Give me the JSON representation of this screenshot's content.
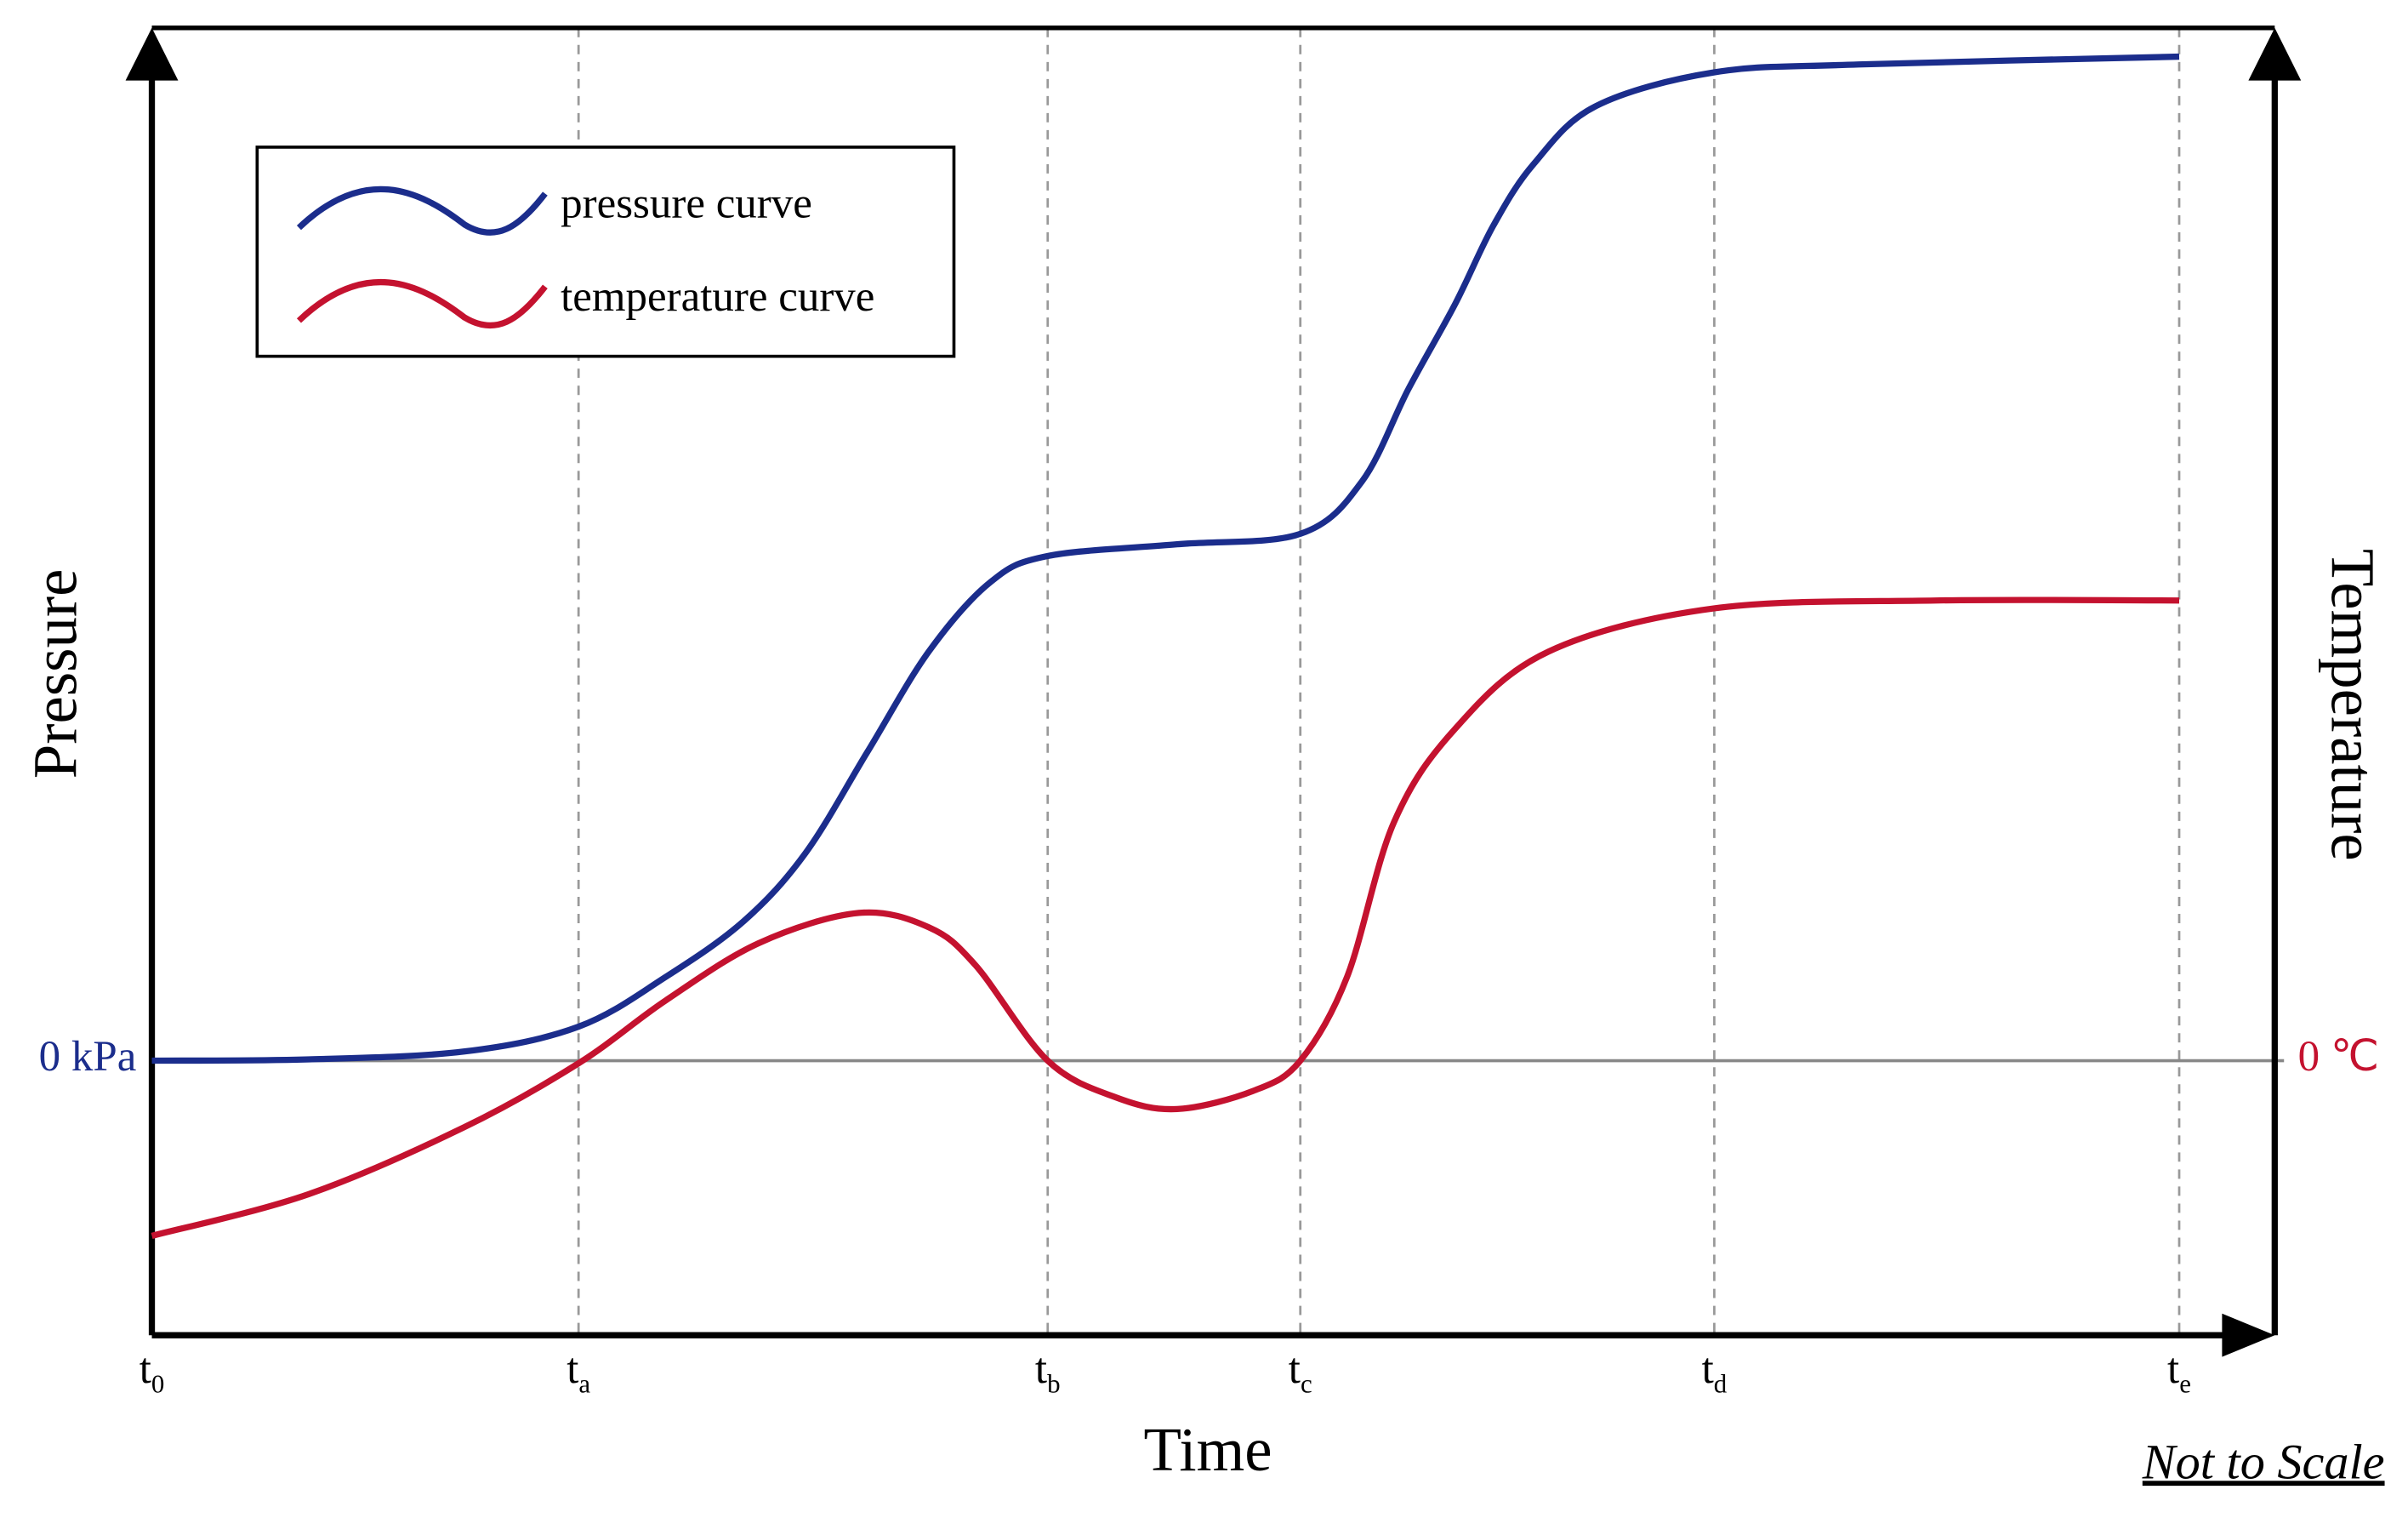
{
  "chart_data": {
    "type": "line",
    "xlabel": "Time",
    "ylabel": "Pressure",
    "y2label": "Temperature",
    "note": "Not to Scale",
    "xlim": [
      0,
      100
    ],
    "xticks": [
      {
        "value": 0,
        "label": "t",
        "sub": "0"
      },
      {
        "value": 20.1,
        "label": "t",
        "sub": "a"
      },
      {
        "value": 42.2,
        "label": "t",
        "sub": "b"
      },
      {
        "value": 54.1,
        "label": "t",
        "sub": "c"
      },
      {
        "value": 73.6,
        "label": "t",
        "sub": "d"
      },
      {
        "value": 95.5,
        "label": "t",
        "sub": "e"
      }
    ],
    "ylim": [
      -21,
      79
    ],
    "yticks": [
      {
        "value": 0,
        "label": "0 kPa"
      }
    ],
    "y2lim": [
      -21,
      79
    ],
    "y2ticks": [
      {
        "value": 0,
        "label": "0 ℃"
      }
    ],
    "grid": true,
    "legend": "upper left",
    "series": [
      {
        "name": "pressure curve",
        "color": "#1b2d8c",
        "x": [
          0,
          7.4,
          14.7,
          20.1,
          24.2,
          27.9,
          30.8,
          33.7,
          36.6,
          39.5,
          42.2,
          48.3,
          54.1,
          57.0,
          59.2,
          61.4,
          63.2,
          65.1,
          68.0,
          73.6,
          80.4,
          95.5
        ],
        "values": [
          0,
          0.1,
          0.7,
          2.6,
          6.4,
          10.7,
          15.9,
          23.6,
          31.3,
          36.6,
          38.6,
          39.5,
          40.3,
          44.3,
          51.4,
          57.9,
          63.9,
          68.6,
          73.0,
          75.6,
          76.2,
          76.8
        ]
      },
      {
        "name": "temperature curve",
        "color": "#c4122f",
        "axis": "y2",
        "x": [
          0,
          7.4,
          14.7,
          20.1,
          24.2,
          28.6,
          33.3,
          36.6,
          38.8,
          42.2,
          45.4,
          48.3,
          51.9,
          54.1,
          56.3,
          58.5,
          61.4,
          65.8,
          73.6,
          84.0,
          95.5
        ],
        "values": [
          -13.4,
          -10.2,
          -5.1,
          -0.2,
          4.6,
          9.0,
          11.3,
          10.2,
          7.3,
          0,
          -2.8,
          -3.7,
          -2.3,
          0,
          6.4,
          18.2,
          25.4,
          31.3,
          34.6,
          35.2,
          35.2
        ]
      }
    ]
  }
}
